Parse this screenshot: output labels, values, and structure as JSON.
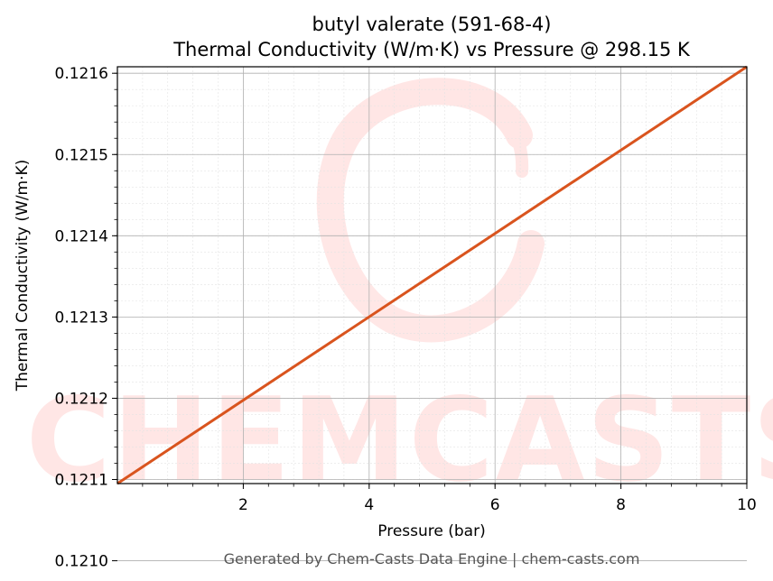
{
  "chart_data": {
    "type": "line",
    "title_line1": "butyl valerate (591-68-4)",
    "title_line2": "Thermal Conductivity (W/m·K) vs Pressure @ 298.15 K",
    "xlabel": "Pressure (bar)",
    "ylabel": "Thermal Conductivity (W/m·K)",
    "xlim": [
      0.0,
      10.0
    ],
    "ylim": [
      0.121095,
      0.121608
    ],
    "x_ticks": [
      2,
      4,
      6,
      8,
      10
    ],
    "x_tick_labels": [
      "2",
      "4",
      "6",
      "8",
      "10"
    ],
    "y_ticks": [
      0.121,
      0.1211,
      0.1212,
      0.1213,
      0.1214,
      0.1215,
      0.1216
    ],
    "y_tick_labels": [
      "0.1210",
      "0.1211",
      "0.1212",
      "0.1213",
      "0.1214",
      "0.1215",
      "0.1216"
    ],
    "grid": true,
    "series": [
      {
        "color": "#d9541e",
        "x": [
          0.0,
          10.0
        ],
        "y": [
          0.121095,
          0.121608
        ]
      }
    ],
    "watermark": "CHEMCASTS"
  },
  "footer": "Generated by Chem-Casts Data Engine | chem-casts.com"
}
